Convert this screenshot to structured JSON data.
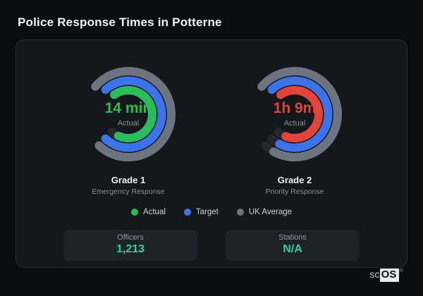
{
  "title": "Police Response Times in Potterne",
  "chart_data": [
    {
      "type": "radial-gauge",
      "title": "Grade 1",
      "subtitle": "Emergency Response",
      "center_value": "14 min",
      "center_label": "Actual",
      "value_color": "#2abd5d",
      "rings": [
        {
          "name": "UK Average",
          "color": "#6b7480",
          "pct": 1.0
        },
        {
          "name": "Target",
          "color": "#3b74ea",
          "pct": 1.0
        },
        {
          "name": "Actual",
          "color": "#2abd5d",
          "pct": 0.93
        }
      ]
    },
    {
      "type": "radial-gauge",
      "title": "Grade 2",
      "subtitle": "Priority Response",
      "center_value": "1h 9m",
      "center_label": "Actual",
      "value_color": "#e2443a",
      "rings": [
        {
          "name": "UK Average",
          "color": "#6b7480",
          "pct": 0.95
        },
        {
          "name": "Target",
          "color": "#3b74ea",
          "pct": 0.94
        },
        {
          "name": "Actual",
          "color": "#e2443a",
          "pct": 0.92
        }
      ]
    }
  ],
  "legend": {
    "items": [
      {
        "label": "Actual",
        "color": "#2abd5d"
      },
      {
        "label": "Target",
        "color": "#3b74ea"
      },
      {
        "label": "UK Average",
        "color": "#6b7480"
      }
    ]
  },
  "stats": [
    {
      "label": "Officers",
      "value": "1,213"
    },
    {
      "label": "Stations",
      "value": "N/A"
    }
  ],
  "brand": {
    "prefix": "sc",
    "suffix": "OS",
    "registered": "®"
  },
  "colors": {
    "background": "#0b0c0f",
    "card": "#16171b",
    "card_border": "#282a31",
    "ring_track": "#24272d",
    "stat_value": "#2bd3a0"
  }
}
